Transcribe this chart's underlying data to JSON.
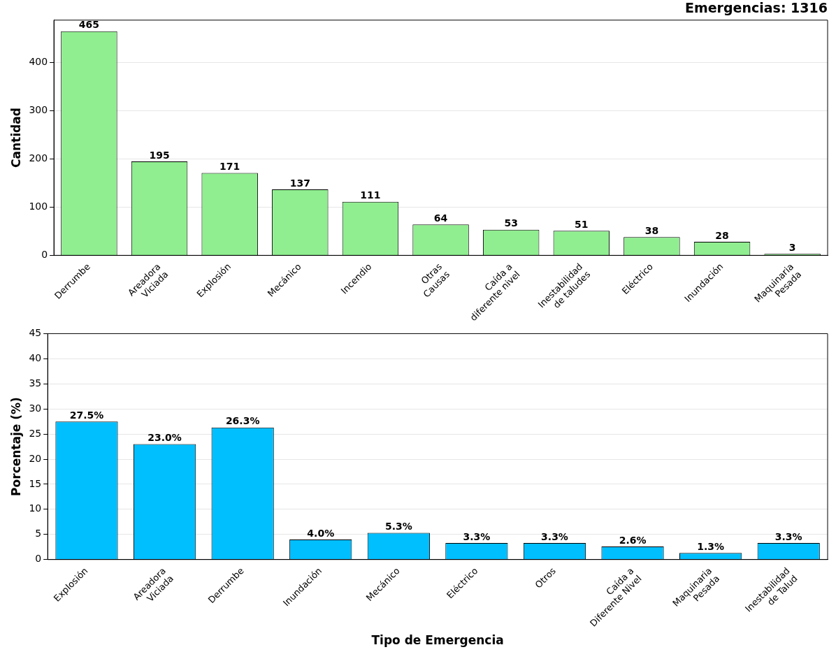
{
  "chart_data": [
    {
      "type": "bar",
      "title": "Emergencias: 1316",
      "ylabel": "Cantidad",
      "categories": [
        "Derrumbe",
        "Areadora\nViciada",
        "Explosión",
        "Mecánico",
        "Incendio",
        "Otras\nCausas",
        "Caída a\ndiferente nivel",
        "Inestabilidad\nde taludes",
        "Eléctrico",
        "Inundación",
        "Maquinaria\nPesada"
      ],
      "values": [
        465,
        195,
        171,
        137,
        111,
        64,
        53,
        51,
        38,
        28,
        3
      ],
      "color": "#90ee90",
      "ylim": [
        0,
        488
      ],
      "yticks": [
        0,
        100,
        200,
        300,
        400
      ],
      "grid": "y",
      "data_labels": true
    },
    {
      "type": "bar",
      "xlabel": "Tipo de Emergencia",
      "ylabel": "Porcentaje (%)",
      "categories": [
        "Explosión",
        "Areadora\nViciada",
        "Derrumbe",
        "Inundación",
        "Mecánico",
        "Eléctrico",
        "Otros",
        "Caída a\nDiferente Nivel",
        "Maquinaria\nPesada",
        "Inestabilidad\nde Talud"
      ],
      "values": [
        27.5,
        23.0,
        26.3,
        4.0,
        5.3,
        3.3,
        3.3,
        2.6,
        1.3,
        3.3
      ],
      "value_labels": [
        "27.5%",
        "23.0%",
        "26.3%",
        "4.0%",
        "5.3%",
        "3.3%",
        "3.3%",
        "2.6%",
        "1.3%",
        "3.3%"
      ],
      "color": "#00bfff",
      "ylim": [
        0,
        45
      ],
      "yticks": [
        0,
        5,
        10,
        15,
        20,
        25,
        30,
        35,
        40,
        45
      ],
      "grid": "y"
    }
  ]
}
